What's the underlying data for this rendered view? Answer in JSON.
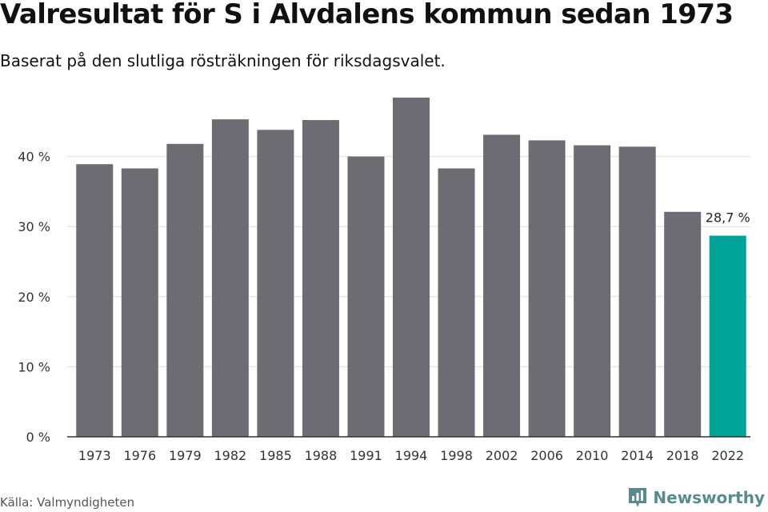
{
  "header": {
    "title": "Valresultat för S i Alvdalens kommun sedan 1973",
    "subtitle": "Baserat på den slutliga rösträkningen för riksdagsvalet."
  },
  "footer": {
    "source": "Källa: Valmyndigheten",
    "brand": "Newsworthy",
    "brand_icon": "newsworthy-logo-icon"
  },
  "colors": {
    "bar": "#6d6c72",
    "highlight": "#00a398",
    "grid": "#dddddd",
    "axis": "#333333",
    "brand": "#5a8a8c"
  },
  "chart_data": {
    "type": "bar",
    "categories": [
      "1973",
      "1976",
      "1979",
      "1982",
      "1985",
      "1988",
      "1991",
      "1994",
      "1998",
      "2002",
      "2006",
      "2010",
      "2014",
      "2018",
      "2022"
    ],
    "values": [
      38.9,
      38.3,
      41.8,
      45.3,
      43.8,
      45.2,
      40.0,
      48.4,
      38.3,
      43.1,
      42.3,
      41.6,
      41.4,
      32.1,
      28.7
    ],
    "highlight_index": 14,
    "data_labels": [
      {
        "index": 14,
        "text": "28,7 %"
      }
    ],
    "yticks": [
      0,
      10,
      20,
      30,
      40
    ],
    "ytick_labels": [
      "0 %",
      "10 %",
      "20 %",
      "30 %",
      "40 %"
    ],
    "ylim": [
      0,
      50
    ],
    "grid": true,
    "xlabel": "",
    "ylabel": ""
  }
}
